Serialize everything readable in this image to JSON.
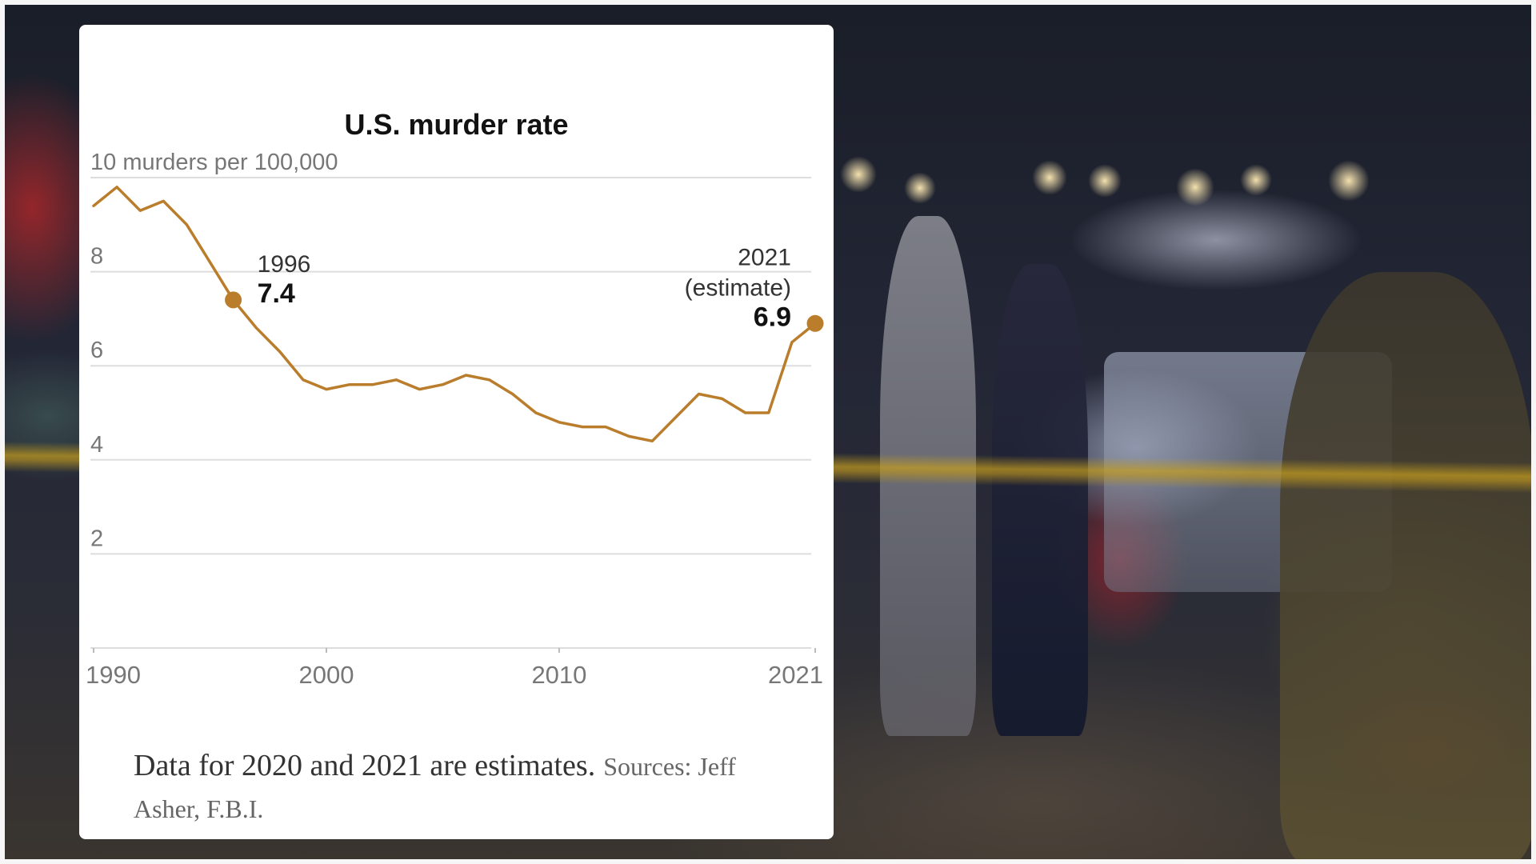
{
  "chart_data": {
    "type": "line",
    "title": "U.S. murder rate",
    "ylabel": "10 murders per 100,000",
    "ylim": [
      0,
      10
    ],
    "y_ticks": [
      {
        "value": 10,
        "label": "10 murders per 100,000"
      },
      {
        "value": 8,
        "label": "8"
      },
      {
        "value": 6,
        "label": "6"
      },
      {
        "value": 4,
        "label": "4"
      },
      {
        "value": 2,
        "label": "2"
      }
    ],
    "x_ticks": [
      {
        "value": 1990,
        "label": "1990"
      },
      {
        "value": 2000,
        "label": "2000"
      },
      {
        "value": 2010,
        "label": "2010"
      },
      {
        "value": 2021,
        "label": "2021"
      }
    ],
    "xlim": [
      1990,
      2021
    ],
    "grid": true,
    "series": [
      {
        "color": "#b97d2c",
        "points": [
          {
            "x": 1990,
            "y": 9.4
          },
          {
            "x": 1991,
            "y": 9.8
          },
          {
            "x": 1992,
            "y": 9.3
          },
          {
            "x": 1993,
            "y": 9.5
          },
          {
            "x": 1994,
            "y": 9.0
          },
          {
            "x": 1995,
            "y": 8.2
          },
          {
            "x": 1996,
            "y": 7.4
          },
          {
            "x": 1997,
            "y": 6.8
          },
          {
            "x": 1998,
            "y": 6.3
          },
          {
            "x": 1999,
            "y": 5.7
          },
          {
            "x": 2000,
            "y": 5.5
          },
          {
            "x": 2001,
            "y": 5.6
          },
          {
            "x": 2002,
            "y": 5.6
          },
          {
            "x": 2003,
            "y": 5.7
          },
          {
            "x": 2004,
            "y": 5.5
          },
          {
            "x": 2005,
            "y": 5.6
          },
          {
            "x": 2006,
            "y": 5.8
          },
          {
            "x": 2007,
            "y": 5.7
          },
          {
            "x": 2008,
            "y": 5.4
          },
          {
            "x": 2009,
            "y": 5.0
          },
          {
            "x": 2010,
            "y": 4.8
          },
          {
            "x": 2011,
            "y": 4.7
          },
          {
            "x": 2012,
            "y": 4.7
          },
          {
            "x": 2013,
            "y": 4.5
          },
          {
            "x": 2014,
            "y": 4.4
          },
          {
            "x": 2015,
            "y": 4.9
          },
          {
            "x": 2016,
            "y": 5.4
          },
          {
            "x": 2017,
            "y": 5.3
          },
          {
            "x": 2018,
            "y": 5.0
          },
          {
            "x": 2019,
            "y": 5.0
          },
          {
            "x": 2020,
            "y": 6.5
          },
          {
            "x": 2021,
            "y": 6.9
          }
        ]
      }
    ],
    "annotations": [
      {
        "x": 1996,
        "y": 7.4,
        "label_lines": [
          "1996"
        ],
        "value": "7.4",
        "align": "left"
      },
      {
        "x": 2021,
        "y": 6.9,
        "label_lines": [
          "2021",
          "(estimate)"
        ],
        "value": "6.9",
        "align": "right"
      }
    ]
  },
  "footnote": {
    "text": "Data for 2020 and 2021 are estimates.",
    "sources": "Sources: Jeff Asher, F.B.I."
  }
}
